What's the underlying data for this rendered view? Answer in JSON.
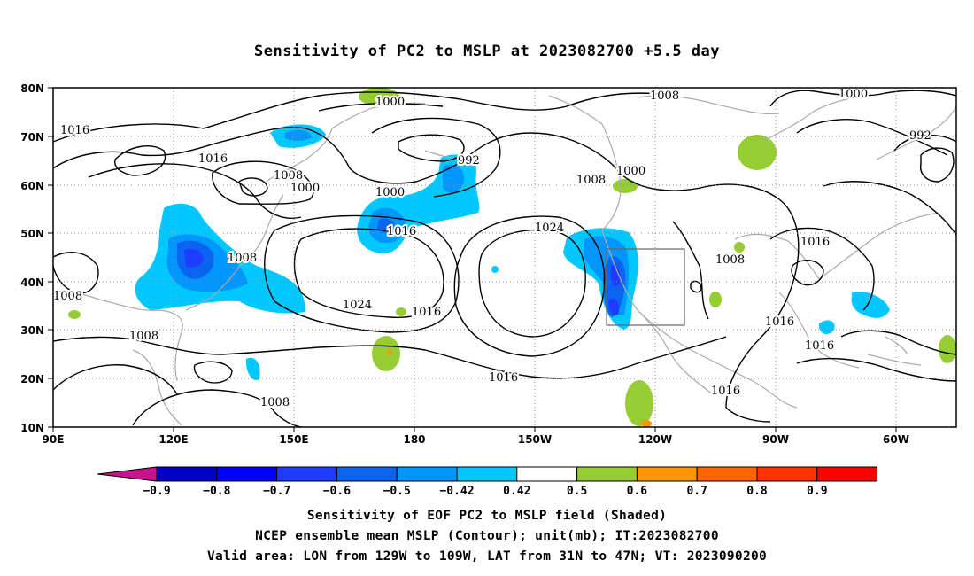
{
  "title": "Sensitivity of PC2 to MSLP at 2023082700 +5.5 day",
  "footer": {
    "line1": "Sensitivity of EOF PC2 to MSLP field (Shaded)",
    "line2": "NCEP ensemble mean MSLP (Contour); unit(mb); IT:2023082700",
    "line3": "Valid area: LON from 129W to 109W, LAT from 31N to 47N; VT: 2023090200"
  },
  "axes": {
    "lat_labels": [
      "80N",
      "70N",
      "60N",
      "50N",
      "40N",
      "30N",
      "20N",
      "10N"
    ],
    "lon_labels": [
      "90E",
      "120E",
      "150E",
      "180",
      "150W",
      "120W",
      "90W",
      "60W"
    ]
  },
  "colorbar": {
    "labels": [
      "-0.9",
      "-0.8",
      "-0.7",
      "-0.6",
      "-0.5",
      "-0.42",
      "0.42",
      "0.5",
      "0.6",
      "0.7",
      "0.8",
      "0.9"
    ],
    "colors": [
      "#0000c8",
      "#0000ff",
      "#1e3cff",
      "#0a64f0",
      "#0096ff",
      "#00c8ff",
      "#ffffff",
      "#96cd32",
      "#ff9600",
      "#ff6400",
      "#ff3200",
      "#ff0000"
    ],
    "low_end": "#c8148c",
    "high_end": "#f0a0c8"
  },
  "colors": {
    "contour": "#000000",
    "coast": "#aaaaaa",
    "box": "#666666"
  },
  "contour_labels": [
    "1016",
    "1016",
    "1008",
    "1000",
    "1008",
    "1000",
    "992",
    "1000",
    "1016",
    "1008",
    "1024",
    "1016",
    "1024",
    "1008",
    "1000",
    "1008",
    "1000",
    "992",
    "1016",
    "1008",
    "1016",
    "1016",
    "1016",
    "1016",
    "1008",
    "1008"
  ]
}
